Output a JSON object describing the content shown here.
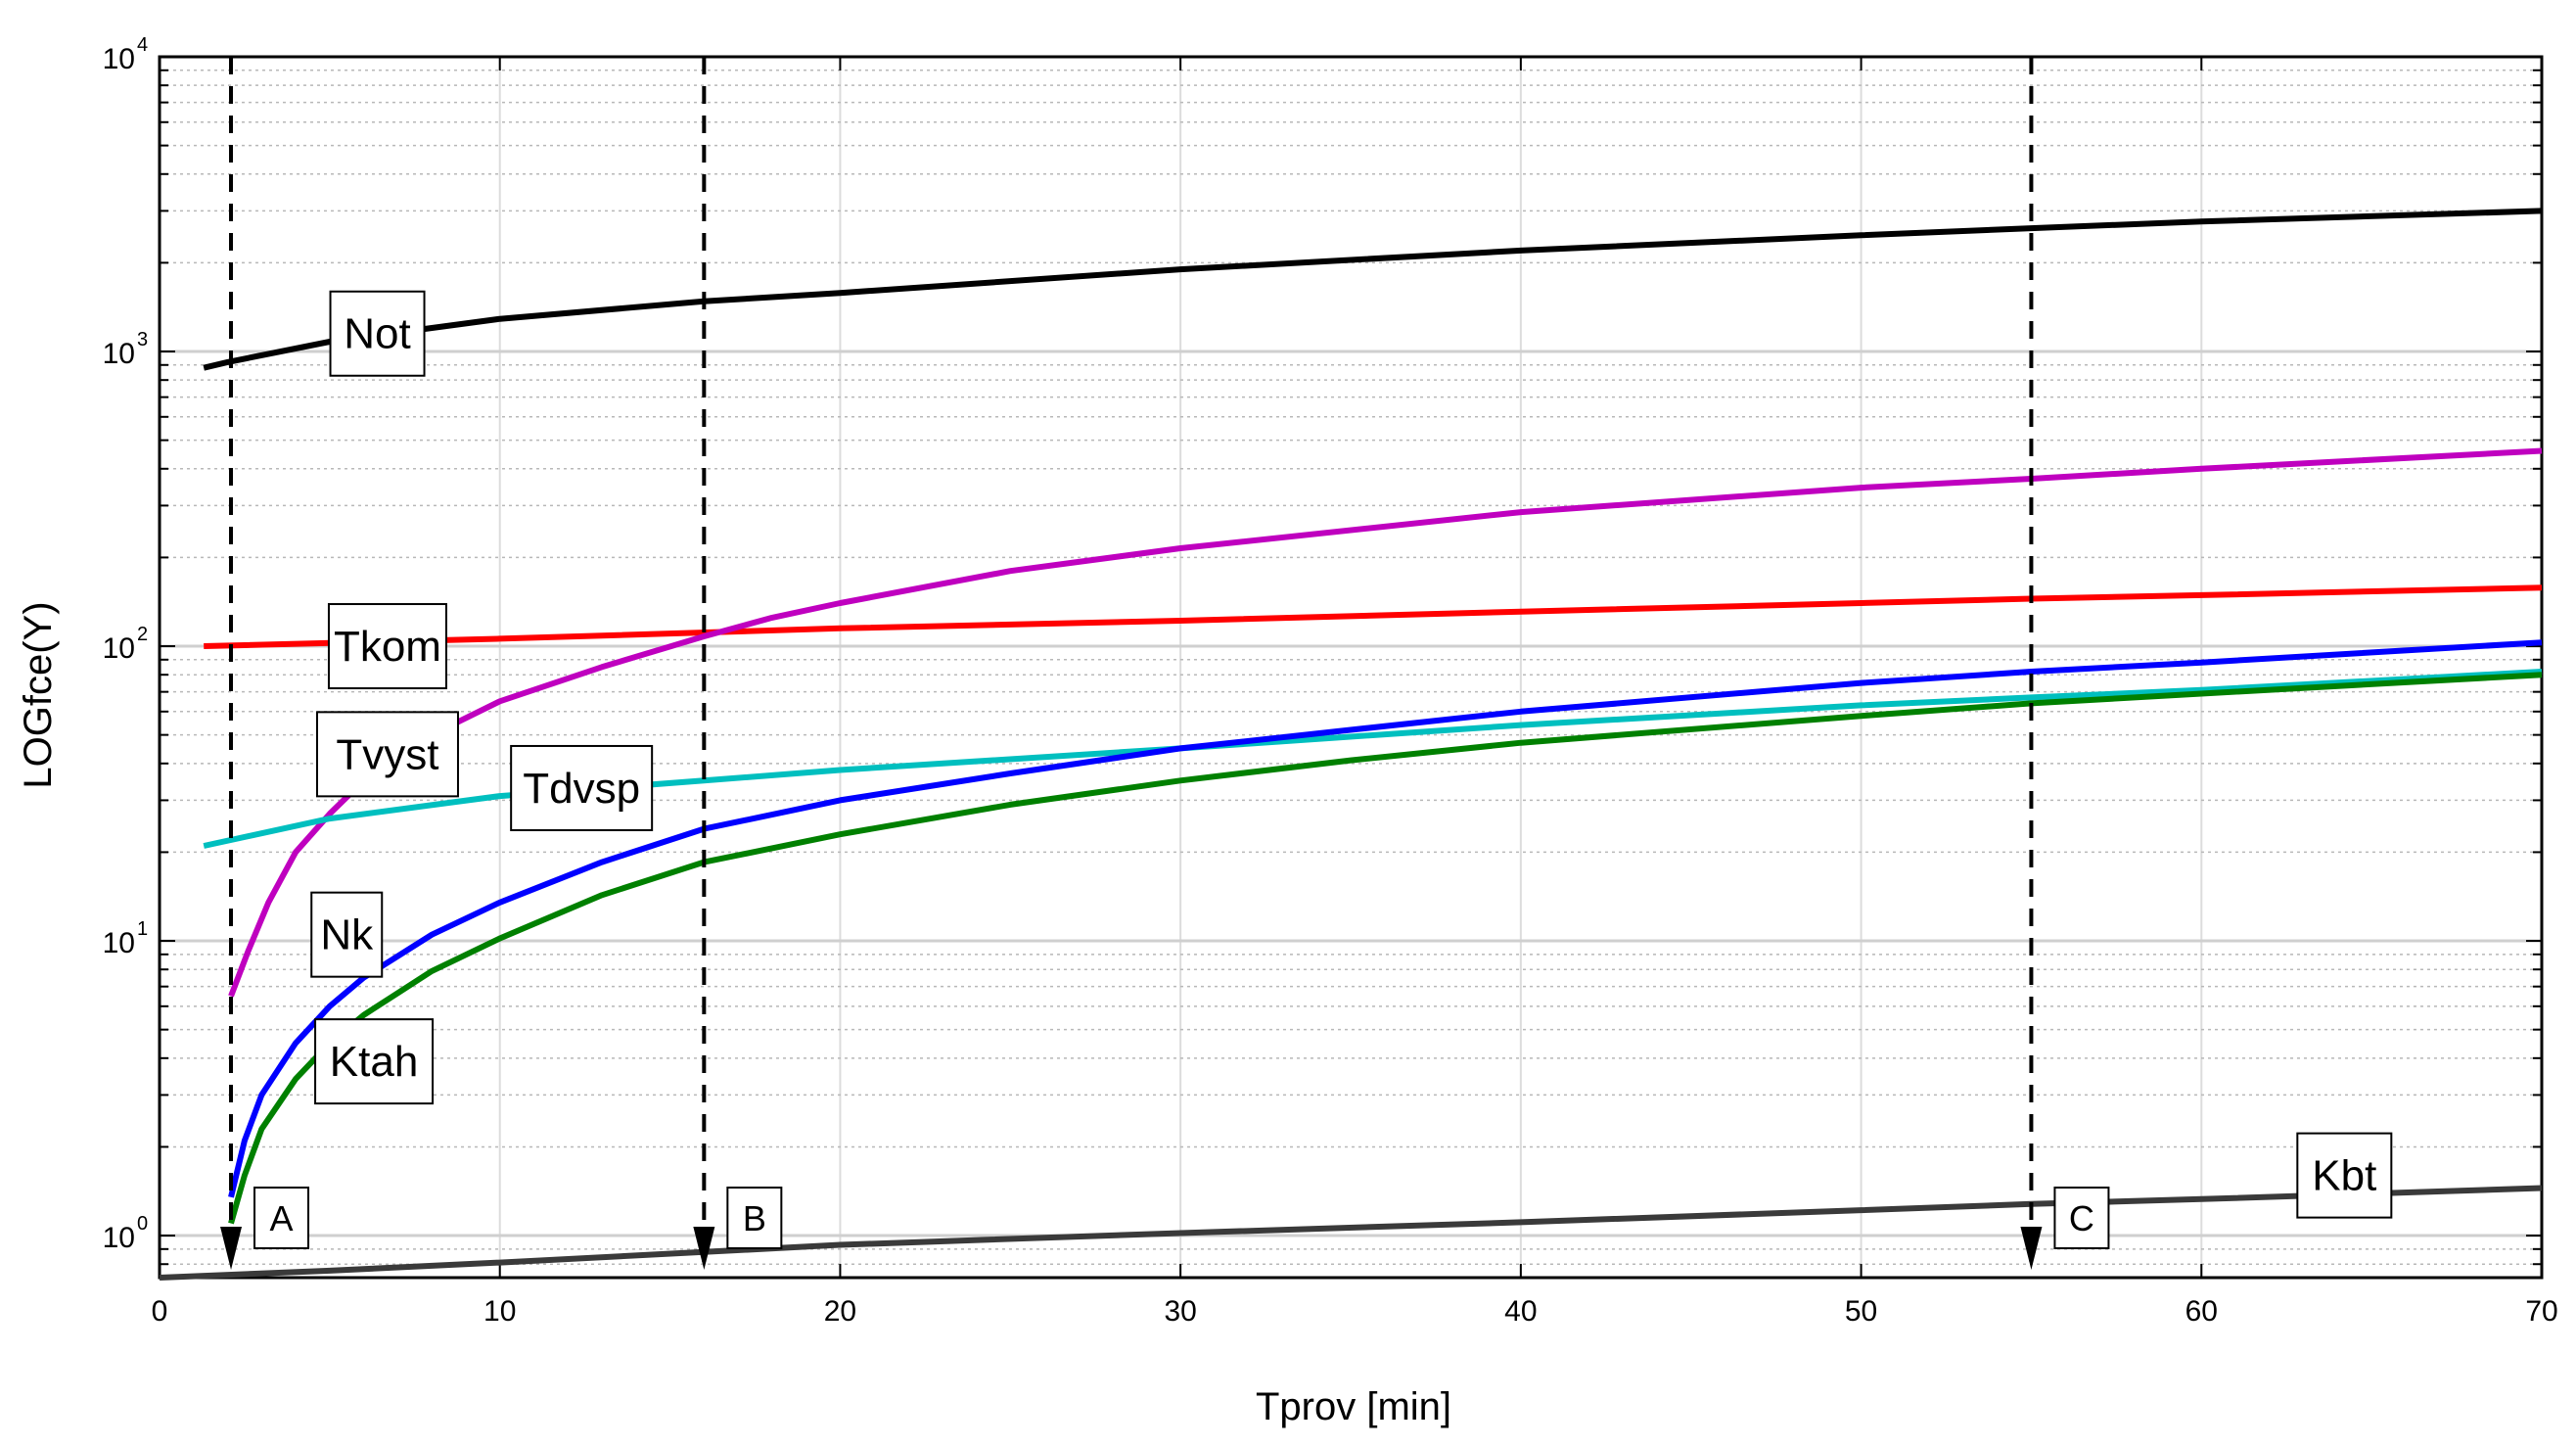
{
  "chart_data": {
    "type": "line",
    "title": "",
    "xlabel": "Tprov  [min]",
    "ylabel": "LOGfce(Y)",
    "xlim": [
      0,
      70
    ],
    "ylim": [
      0.72,
      10000
    ],
    "yscale": "log",
    "grid": true,
    "x_ticks": [
      0,
      10,
      20,
      30,
      40,
      50,
      60,
      70
    ],
    "y_tick_exponents": [
      0,
      1,
      2,
      3,
      4
    ],
    "y_tick_base": "10",
    "series": [
      {
        "name": "Not",
        "color": "#000000",
        "x": [
          1.3,
          2,
          5,
          10,
          16,
          20,
          30,
          40,
          50,
          55,
          60,
          70
        ],
        "y": [
          880,
          920,
          1080,
          1290,
          1480,
          1580,
          1900,
          2200,
          2480,
          2620,
          2760,
          3000
        ]
      },
      {
        "name": "Tkom",
        "color": "#ff0000",
        "x": [
          1.3,
          10,
          20,
          30,
          40,
          50,
          55,
          60,
          70
        ],
        "y": [
          100,
          106,
          115,
          122,
          131,
          140,
          145,
          149,
          158
        ]
      },
      {
        "name": "Tvyst",
        "color": "#bf00bf",
        "x": [
          2.1,
          2.6,
          3.2,
          4,
          5,
          6,
          8,
          10,
          13,
          16,
          18,
          20,
          25,
          30,
          40,
          50,
          55,
          60,
          70
        ],
        "y": [
          6.5,
          9.2,
          13.5,
          20,
          27,
          35,
          50,
          65,
          85,
          108,
          125,
          140,
          180,
          215,
          285,
          345,
          370,
          400,
          460
        ]
      },
      {
        "name": "Tdvsp",
        "color": "#00bfbf",
        "x": [
          1.3,
          5,
          10,
          16,
          20,
          30,
          40,
          50,
          55,
          60,
          70
        ],
        "y": [
          21,
          26,
          31,
          35,
          38,
          45,
          54,
          63,
          67,
          71,
          82
        ]
      },
      {
        "name": "Nk",
        "color": "#0000ff",
        "x": [
          2.1,
          2.5,
          3,
          4,
          5,
          6,
          8,
          10,
          13,
          16,
          20,
          25,
          30,
          35,
          40,
          50,
          55,
          60,
          70
        ],
        "y": [
          1.35,
          2.1,
          3.0,
          4.5,
          6.0,
          7.5,
          10.5,
          13.5,
          18.5,
          24,
          30,
          37,
          45,
          52,
          60,
          75,
          82,
          88,
          103
        ]
      },
      {
        "name": "Ktah",
        "color": "#008000",
        "x": [
          2.1,
          2.5,
          3,
          4,
          5,
          6,
          8,
          10,
          13,
          16,
          20,
          25,
          30,
          35,
          40,
          50,
          55,
          60,
          70
        ],
        "y": [
          1.1,
          1.6,
          2.3,
          3.4,
          4.5,
          5.6,
          7.9,
          10.2,
          14.3,
          18.5,
          23,
          29,
          35,
          41,
          47,
          58,
          64,
          69,
          80
        ]
      },
      {
        "name": "Kbt",
        "color": "#3a3a3a",
        "x": [
          0,
          5,
          10,
          16,
          20,
          30,
          40,
          50,
          55,
          60,
          70
        ],
        "y": [
          0.72,
          0.76,
          0.81,
          0.88,
          0.93,
          1.02,
          1.11,
          1.22,
          1.28,
          1.33,
          1.45
        ]
      }
    ],
    "series_labels": [
      {
        "text": "Not",
        "x": 6.4,
        "y": 1150
      },
      {
        "text": "Tkom",
        "x": 6.7,
        "y": 100
      },
      {
        "text": "Tvyst",
        "x": 6.7,
        "y": 43
      },
      {
        "text": "Tdvsp",
        "x": 12.4,
        "y": 33
      },
      {
        "text": "Nk",
        "x": 5.5,
        "y": 10.5
      },
      {
        "text": "Ktah",
        "x": 6.3,
        "y": 3.9
      },
      {
        "text": "Kbt",
        "x": 64.2,
        "y": 1.6
      }
    ],
    "markers": [
      {
        "text": "A",
        "x": 2.1
      },
      {
        "text": "B",
        "x": 16
      },
      {
        "text": "C",
        "x": 55
      }
    ]
  }
}
